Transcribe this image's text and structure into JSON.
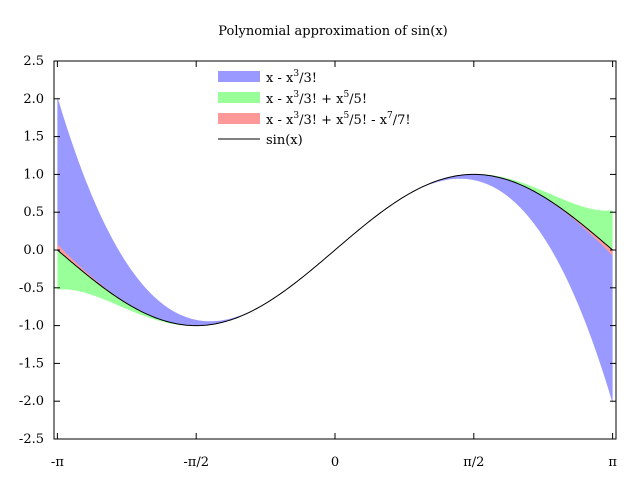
{
  "chart_data": {
    "type": "area",
    "title": "Polynomial approximation of sin(x)",
    "xlabel": "",
    "ylabel": "",
    "xlim": [
      -3.18,
      3.18
    ],
    "ylim": [
      -2.5,
      2.5
    ],
    "grid": false,
    "legend_position": "top-center",
    "x_ticks": [
      {
        "value": -3.14159,
        "label": "-π"
      },
      {
        "value": -1.5708,
        "label": "-π/2"
      },
      {
        "value": 0,
        "label": "0"
      },
      {
        "value": 1.5708,
        "label": "π/2"
      },
      {
        "value": 3.14159,
        "label": "π"
      }
    ],
    "y_ticks": [
      {
        "value": 2.5,
        "label": "2.5"
      },
      {
        "value": 2.0,
        "label": "2.0"
      },
      {
        "value": 1.5,
        "label": "1.5"
      },
      {
        "value": 1.0,
        "label": "1.0"
      },
      {
        "value": 0.5,
        "label": "0.5"
      },
      {
        "value": 0.0,
        "label": "0.0"
      },
      {
        "value": -0.5,
        "label": "-0.5"
      },
      {
        "value": -1.0,
        "label": "-1.0"
      },
      {
        "value": -1.5,
        "label": "-1.5"
      },
      {
        "value": -2.0,
        "label": "-2.0"
      },
      {
        "value": -2.5,
        "label": "-2.5"
      }
    ],
    "series": [
      {
        "name": "x - x3/3!",
        "kind": "filledcurve-between-sin",
        "color": "#9999ff",
        "terms": 2,
        "sample_x": [
          -3.1416,
          -1.5708,
          0,
          1.5708,
          3.1416
        ],
        "sample_y": [
          2.0261,
          -0.9248,
          0,
          0.9248,
          -2.0261
        ]
      },
      {
        "name": "x - x3/3! + x5/5!",
        "kind": "filledcurve-between-sin",
        "color": "#99ff99",
        "terms": 3,
        "sample_x": [
          -3.1416,
          -1.5708,
          0,
          1.5708,
          3.1416
        ],
        "sample_y": [
          -0.524,
          -1.0045,
          0,
          1.0045,
          0.524
        ]
      },
      {
        "name": "x - x3/3! + x5/5! - x7/7!",
        "kind": "filledcurve-between-sin",
        "color": "#ff9999",
        "terms": 4,
        "sample_x": [
          -3.1416,
          -1.5708,
          0,
          1.5708,
          3.1416
        ],
        "sample_y": [
          0.0752,
          -0.9998,
          0,
          0.9998,
          -0.0752
        ]
      },
      {
        "name": "sin(x)",
        "kind": "line",
        "color": "#000000",
        "sample_x": [
          -3.1416,
          -1.5708,
          0,
          1.5708,
          3.1416
        ],
        "sample_y": [
          0,
          -1,
          0,
          1,
          0
        ]
      }
    ],
    "legend": [
      {
        "base": "x - x",
        "exp": "3",
        "rest": "/3!"
      },
      {
        "base": "x - x",
        "exp": "3",
        "rest": "/3! + x",
        "exp2": "5",
        "rest2": "/5!"
      },
      {
        "base": "x - x",
        "exp": "3",
        "rest": "/3! + x",
        "exp2": "5",
        "rest2": "/5! - x",
        "exp3": "7",
        "rest3": "/7!"
      },
      {
        "base": "sin(x)"
      }
    ]
  }
}
